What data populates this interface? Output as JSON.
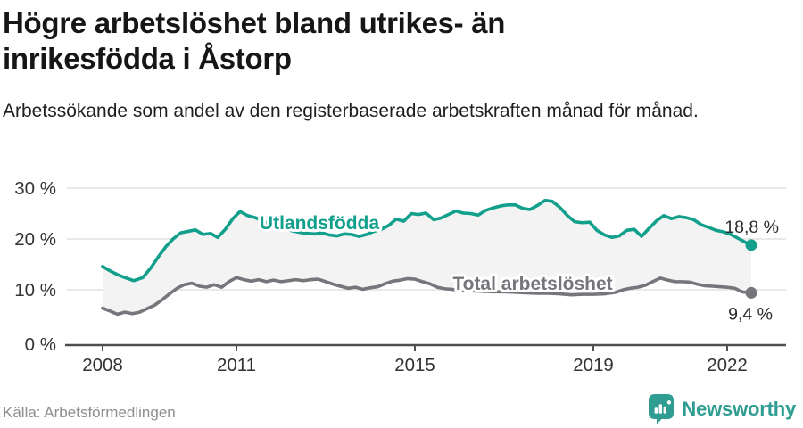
{
  "chart_data": {
    "type": "line",
    "title": "Högre arbetslöshet bland utrikes- än inrikesfödda i Åstorp",
    "subtitle": "Arbetssökande som andel av den registerbaserade arbetskraften månad för månad.",
    "source": "Källa: Arbetsförmedlingen",
    "y_unit": "%",
    "ylim": [
      0,
      30
    ],
    "x_range": [
      2008.0,
      2022.54
    ],
    "grid": true,
    "yticks": [
      {
        "value": 0,
        "label": "0 %"
      },
      {
        "value": 10,
        "label": "10 %"
      },
      {
        "value": 20,
        "label": "20 %"
      },
      {
        "value": 30,
        "label": "30 %"
      }
    ],
    "xticks": [
      {
        "value": 2008,
        "label": "2008"
      },
      {
        "value": 2011,
        "label": "2011"
      },
      {
        "value": 2015,
        "label": "2015"
      },
      {
        "value": 2019,
        "label": "2019"
      },
      {
        "value": 2022,
        "label": "2022"
      }
    ],
    "series": [
      {
        "name": "Utlandsfödda",
        "color": "#12a08c",
        "end_label": "18,8 %",
        "end_value": 18.8,
        "label_pos": [
          2012.86,
          23.2
        ],
        "points": [
          [
            2008.0,
            14.6
          ],
          [
            2008.17,
            13.7
          ],
          [
            2008.33,
            13.0
          ],
          [
            2008.5,
            12.4
          ],
          [
            2008.7,
            11.8
          ],
          [
            2008.9,
            12.4
          ],
          [
            2009.08,
            14.3
          ],
          [
            2009.25,
            16.5
          ],
          [
            2009.42,
            18.5
          ],
          [
            2009.58,
            20.0
          ],
          [
            2009.75,
            21.2
          ],
          [
            2009.92,
            21.5
          ],
          [
            2010.08,
            21.8
          ],
          [
            2010.25,
            20.9
          ],
          [
            2010.42,
            21.1
          ],
          [
            2010.58,
            20.3
          ],
          [
            2010.75,
            21.9
          ],
          [
            2010.92,
            24.0
          ],
          [
            2011.08,
            25.4
          ],
          [
            2011.25,
            24.6
          ],
          [
            2011.42,
            24.2
          ],
          [
            2011.58,
            23.6
          ],
          [
            2011.75,
            23.0
          ],
          [
            2011.92,
            22.4
          ],
          [
            2012.08,
            22.0
          ],
          [
            2012.25,
            21.6
          ],
          [
            2012.42,
            21.3
          ],
          [
            2012.58,
            21.1
          ],
          [
            2012.75,
            21.0
          ],
          [
            2012.92,
            21.2
          ],
          [
            2013.08,
            20.8
          ],
          [
            2013.25,
            20.6
          ],
          [
            2013.42,
            21.0
          ],
          [
            2013.58,
            20.9
          ],
          [
            2013.75,
            20.5
          ],
          [
            2013.92,
            20.9
          ],
          [
            2014.08,
            21.5
          ],
          [
            2014.25,
            21.9
          ],
          [
            2014.42,
            22.7
          ],
          [
            2014.58,
            23.9
          ],
          [
            2014.75,
            23.5
          ],
          [
            2014.92,
            25.0
          ],
          [
            2015.08,
            24.8
          ],
          [
            2015.25,
            25.1
          ],
          [
            2015.42,
            23.8
          ],
          [
            2015.58,
            24.1
          ],
          [
            2015.75,
            24.8
          ],
          [
            2015.92,
            25.5
          ],
          [
            2016.08,
            25.1
          ],
          [
            2016.25,
            25.0
          ],
          [
            2016.42,
            24.7
          ],
          [
            2016.58,
            25.6
          ],
          [
            2016.75,
            26.1
          ],
          [
            2016.92,
            26.5
          ],
          [
            2017.08,
            26.7
          ],
          [
            2017.25,
            26.7
          ],
          [
            2017.42,
            26.0
          ],
          [
            2017.58,
            25.8
          ],
          [
            2017.75,
            26.6
          ],
          [
            2017.92,
            27.6
          ],
          [
            2018.08,
            27.4
          ],
          [
            2018.25,
            26.2
          ],
          [
            2018.42,
            24.6
          ],
          [
            2018.58,
            23.4
          ],
          [
            2018.75,
            23.2
          ],
          [
            2018.92,
            23.3
          ],
          [
            2019.08,
            21.7
          ],
          [
            2019.25,
            20.8
          ],
          [
            2019.42,
            20.3
          ],
          [
            2019.58,
            20.6
          ],
          [
            2019.75,
            21.7
          ],
          [
            2019.92,
            21.9
          ],
          [
            2020.08,
            20.5
          ],
          [
            2020.25,
            22.1
          ],
          [
            2020.42,
            23.6
          ],
          [
            2020.58,
            24.6
          ],
          [
            2020.75,
            24.0
          ],
          [
            2020.92,
            24.4
          ],
          [
            2021.08,
            24.2
          ],
          [
            2021.25,
            23.8
          ],
          [
            2021.42,
            22.8
          ],
          [
            2021.58,
            22.3
          ],
          [
            2021.75,
            21.7
          ],
          [
            2021.92,
            21.4
          ],
          [
            2022.08,
            20.9
          ],
          [
            2022.25,
            20.1
          ],
          [
            2022.42,
            19.3
          ],
          [
            2022.54,
            18.8
          ]
        ]
      },
      {
        "name": "Total arbetslöshet",
        "color": "#75757b",
        "end_label": "9,4 %",
        "end_value": 9.4,
        "label_pos": [
          2017.64,
          11.2
        ],
        "points": [
          [
            2008.0,
            6.4
          ],
          [
            2008.17,
            5.8
          ],
          [
            2008.33,
            5.2
          ],
          [
            2008.5,
            5.6
          ],
          [
            2008.67,
            5.3
          ],
          [
            2008.83,
            5.6
          ],
          [
            2009.0,
            6.3
          ],
          [
            2009.17,
            7.0
          ],
          [
            2009.33,
            8.0
          ],
          [
            2009.5,
            9.2
          ],
          [
            2009.67,
            10.3
          ],
          [
            2009.83,
            11.0
          ],
          [
            2010.0,
            11.3
          ],
          [
            2010.17,
            10.7
          ],
          [
            2010.33,
            10.5
          ],
          [
            2010.5,
            11.0
          ],
          [
            2010.67,
            10.5
          ],
          [
            2010.83,
            11.6
          ],
          [
            2011.0,
            12.4
          ],
          [
            2011.17,
            12.0
          ],
          [
            2011.33,
            11.7
          ],
          [
            2011.5,
            12.0
          ],
          [
            2011.67,
            11.6
          ],
          [
            2011.83,
            11.9
          ],
          [
            2012.0,
            11.6
          ],
          [
            2012.17,
            11.8
          ],
          [
            2012.33,
            12.0
          ],
          [
            2012.5,
            11.8
          ],
          [
            2012.67,
            12.0
          ],
          [
            2012.83,
            12.1
          ],
          [
            2013.0,
            11.6
          ],
          [
            2013.17,
            11.1
          ],
          [
            2013.33,
            10.7
          ],
          [
            2013.5,
            10.3
          ],
          [
            2013.67,
            10.5
          ],
          [
            2013.83,
            10.1
          ],
          [
            2014.0,
            10.4
          ],
          [
            2014.17,
            10.6
          ],
          [
            2014.33,
            11.2
          ],
          [
            2014.5,
            11.7
          ],
          [
            2014.67,
            11.9
          ],
          [
            2014.83,
            12.2
          ],
          [
            2015.0,
            12.1
          ],
          [
            2015.17,
            11.6
          ],
          [
            2015.33,
            11.2
          ],
          [
            2015.5,
            10.5
          ],
          [
            2015.67,
            10.2
          ],
          [
            2015.83,
            10.1
          ],
          [
            2016.0,
            9.9
          ],
          [
            2016.25,
            9.8
          ],
          [
            2016.5,
            9.7
          ],
          [
            2016.75,
            9.6
          ],
          [
            2017.0,
            9.6
          ],
          [
            2017.25,
            9.5
          ],
          [
            2017.5,
            9.4
          ],
          [
            2017.75,
            9.3
          ],
          [
            2018.0,
            9.3
          ],
          [
            2018.25,
            9.2
          ],
          [
            2018.5,
            9.0
          ],
          [
            2018.75,
            9.1
          ],
          [
            2019.0,
            9.1
          ],
          [
            2019.25,
            9.2
          ],
          [
            2019.5,
            9.5
          ],
          [
            2019.67,
            10.0
          ],
          [
            2019.83,
            10.3
          ],
          [
            2020.0,
            10.5
          ],
          [
            2020.17,
            10.9
          ],
          [
            2020.33,
            11.6
          ],
          [
            2020.5,
            12.3
          ],
          [
            2020.67,
            11.9
          ],
          [
            2020.83,
            11.6
          ],
          [
            2021.0,
            11.6
          ],
          [
            2021.17,
            11.5
          ],
          [
            2021.33,
            11.1
          ],
          [
            2021.5,
            10.8
          ],
          [
            2021.67,
            10.7
          ],
          [
            2021.83,
            10.6
          ],
          [
            2022.0,
            10.5
          ],
          [
            2022.17,
            10.3
          ],
          [
            2022.33,
            9.6
          ],
          [
            2022.54,
            9.4
          ]
        ]
      }
    ],
    "area_between_series": true
  },
  "footer": {
    "brand": "Newsworthy"
  },
  "colors": {
    "teal": "#12a08c",
    "gray": "#75757b",
    "area_fill": "#f3f3f3",
    "grid": "#dcdcdc",
    "axis": "#4f4f4f",
    "tick_text": "#333333",
    "end_label_text": "#2b2b2b",
    "brand_teal": "#2f9d92"
  }
}
